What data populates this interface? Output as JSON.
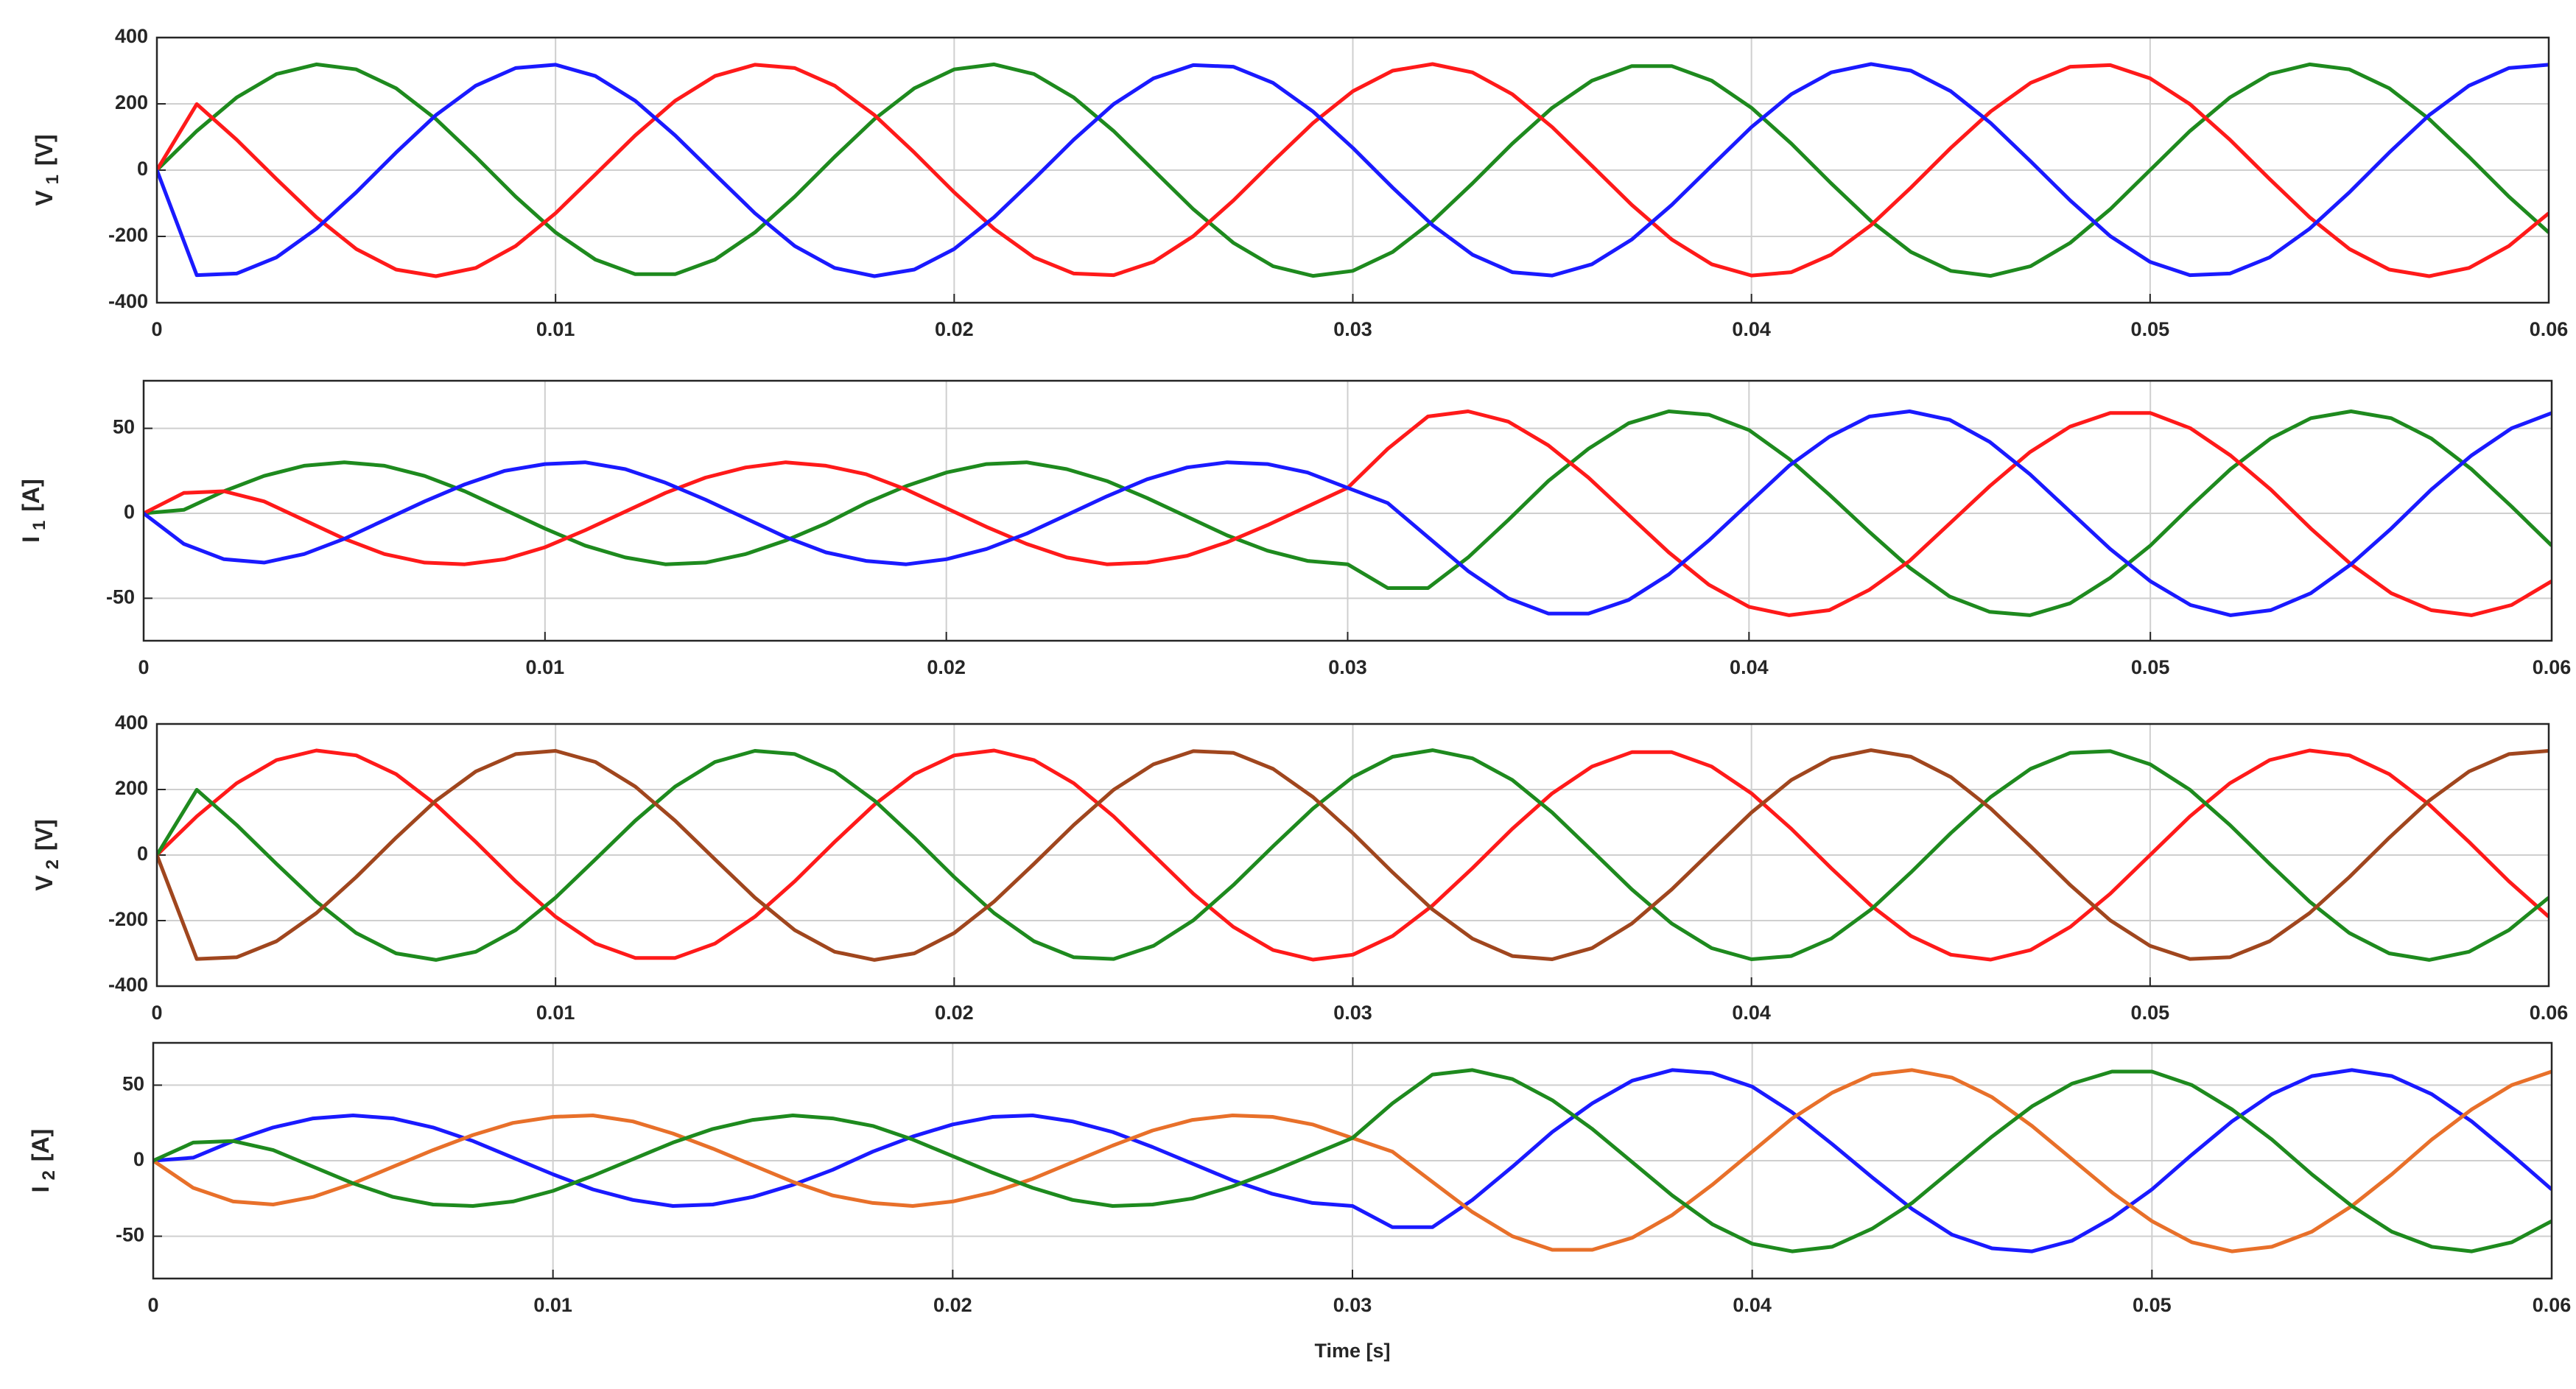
{
  "chart_data": [
    {
      "type": "line",
      "ylabel_symbol": "V",
      "ylabel_subscript": "1",
      "ylabel_unit": "[V]",
      "x": [
        0,
        0.001,
        0.002,
        0.003,
        0.004,
        0.005,
        0.006,
        0.007,
        0.008,
        0.009,
        0.01,
        0.011,
        0.012,
        0.013,
        0.014,
        0.015,
        0.016,
        0.017,
        0.018,
        0.019,
        0.02,
        0.021,
        0.022,
        0.023,
        0.024,
        0.025,
        0.026,
        0.027,
        0.028,
        0.029,
        0.03,
        0.031,
        0.032,
        0.033,
        0.034,
        0.035,
        0.036,
        0.037,
        0.038,
        0.039,
        0.04,
        0.041,
        0.042,
        0.043,
        0.044,
        0.045,
        0.046,
        0.047,
        0.048,
        0.049,
        0.05,
        0.051,
        0.052,
        0.053,
        0.054,
        0.055,
        0.056,
        0.057,
        0.058,
        0.059,
        0.06
      ],
      "xlim": [
        0,
        0.06
      ],
      "xticks": [
        0,
        0.01,
        0.02,
        0.03,
        0.04,
        0.05,
        0.06
      ],
      "ylim": [
        -400,
        400
      ],
      "yticks": [
        -400,
        -200,
        0,
        200,
        400
      ],
      "grid": true,
      "series": [
        {
          "color": "#1e8a1e",
          "values": [
            0,
            118,
            219,
            290,
            319,
            304,
            247,
            154,
            40,
            -80,
            -188,
            -270,
            -314,
            -314,
            -270,
            -188,
            -80,
            40,
            154,
            247,
            304,
            319,
            290,
            219,
            118,
            0,
            -118,
            -219,
            -290,
            -319,
            -304,
            -247,
            -154,
            -40,
            80,
            188,
            270,
            314,
            314,
            270,
            188,
            80,
            -40,
            -154,
            -247,
            -304,
            -319,
            -290,
            -219,
            -118,
            0,
            118,
            219,
            290,
            319,
            304,
            247,
            154,
            40,
            -80,
            -188
          ]
        },
        {
          "color": "#ff1a1a",
          "values": [
            0,
            199,
            92,
            -27,
            -142,
            -238,
            -300,
            -320,
            -295,
            -229,
            -130,
            -13,
            105,
            209,
            284,
            318,
            308,
            255,
            166,
            53,
            -67,
            -177,
            -263,
            -312,
            -317,
            -277,
            -199,
            -92,
            27,
            142,
            238,
            300,
            320,
            295,
            229,
            130,
            13,
            -105,
            -209,
            -284,
            -318,
            -308,
            -255,
            -166,
            -53,
            67,
            177,
            263,
            312,
            317,
            277,
            199,
            92,
            -27,
            -142,
            -238,
            -300,
            -320,
            -295,
            -229,
            -130
          ]
        },
        {
          "color": "#1a1aff",
          "values": [
            0,
            -317,
            -312,
            -263,
            -177,
            -67,
            53,
            166,
            255,
            308,
            318,
            284,
            209,
            105,
            -13,
            -130,
            -229,
            -295,
            -320,
            -300,
            -238,
            -142,
            -27,
            92,
            199,
            277,
            317,
            312,
            263,
            177,
            67,
            -53,
            -166,
            -255,
            -308,
            -318,
            -284,
            -209,
            -105,
            13,
            130,
            229,
            295,
            320,
            300,
            238,
            142,
            27,
            -92,
            -199,
            -277,
            -317,
            -312,
            -263,
            -177,
            -67,
            53,
            166,
            255,
            308,
            318
          ]
        }
      ]
    },
    {
      "type": "line",
      "ylabel_symbol": "I",
      "ylabel_subscript": "1",
      "ylabel_unit": "[A]",
      "x": [
        0,
        0.001,
        0.002,
        0.003,
        0.004,
        0.005,
        0.006,
        0.007,
        0.008,
        0.009,
        0.01,
        0.011,
        0.012,
        0.013,
        0.014,
        0.015,
        0.016,
        0.017,
        0.018,
        0.019,
        0.02,
        0.021,
        0.022,
        0.023,
        0.024,
        0.025,
        0.026,
        0.027,
        0.028,
        0.029,
        0.03,
        0.031,
        0.032,
        0.033,
        0.034,
        0.035,
        0.036,
        0.037,
        0.038,
        0.039,
        0.04,
        0.041,
        0.042,
        0.043,
        0.044,
        0.045,
        0.046,
        0.047,
        0.048,
        0.049,
        0.05,
        0.051,
        0.052,
        0.053,
        0.054,
        0.055,
        0.056,
        0.057,
        0.058,
        0.059,
        0.06
      ],
      "xlim": [
        0,
        0.06
      ],
      "xticks": [
        0,
        0.01,
        0.02,
        0.03,
        0.04,
        0.05,
        0.06
      ],
      "ylim": [
        -75,
        78
      ],
      "yticks": [
        -50,
        0,
        50
      ],
      "grid": true,
      "series": [
        {
          "color": "#1e8a1e",
          "values": [
            0,
            2,
            13,
            22,
            28,
            30,
            28,
            22,
            13,
            2,
            -9,
            -19,
            -26,
            -30,
            -29,
            -24,
            -16,
            -6,
            6,
            16,
            24,
            29,
            30,
            26,
            19,
            9,
            -2,
            -13,
            -22,
            -28,
            -30,
            -44,
            -44,
            -26,
            -4,
            19,
            38,
            53,
            60,
            58,
            49,
            32,
            11,
            -11,
            -32,
            -49,
            -58,
            -60,
            -53,
            -38,
            -19,
            4,
            26,
            44,
            56,
            60,
            56,
            44,
            26,
            4,
            -19
          ]
        },
        {
          "color": "#ff1a1a",
          "values": [
            0,
            12,
            13,
            7,
            -4,
            -15,
            -24,
            -29,
            -30,
            -27,
            -20,
            -10,
            1,
            12,
            21,
            27,
            30,
            28,
            23,
            14,
            3,
            -8,
            -18,
            -26,
            -30,
            -29,
            -25,
            -17,
            -7,
            4,
            15,
            38,
            57,
            60,
            54,
            40,
            21,
            -1,
            -23,
            -42,
            -55,
            -60,
            -57,
            -45,
            -28,
            -6,
            16,
            36,
            51,
            59,
            59,
            50,
            34,
            14,
            -9,
            -30,
            -47,
            -57,
            -60,
            -54,
            -40
          ]
        },
        {
          "color": "#1a1aff",
          "values": [
            0,
            -18,
            -27,
            -29,
            -24,
            -15,
            -4,
            7,
            17,
            25,
            29,
            30,
            26,
            18,
            8,
            -3,
            -14,
            -23,
            -28,
            -30,
            -27,
            -21,
            -12,
            -1,
            10,
            20,
            27,
            30,
            29,
            24,
            15,
            6,
            -14,
            -34,
            -50,
            -59,
            -59,
            -51,
            -36,
            -16,
            6,
            28,
            45,
            57,
            60,
            55,
            42,
            23,
            1,
            -21,
            -40,
            -54,
            -60,
            -57,
            -47,
            -30,
            -9,
            14,
            34,
            50,
            59
          ]
        }
      ]
    },
    {
      "type": "line",
      "ylabel_symbol": "V",
      "ylabel_subscript": "2",
      "ylabel_unit": "[V]",
      "x": [
        0,
        0.001,
        0.002,
        0.003,
        0.004,
        0.005,
        0.006,
        0.007,
        0.008,
        0.009,
        0.01,
        0.011,
        0.012,
        0.013,
        0.014,
        0.015,
        0.016,
        0.017,
        0.018,
        0.019,
        0.02,
        0.021,
        0.022,
        0.023,
        0.024,
        0.025,
        0.026,
        0.027,
        0.028,
        0.029,
        0.03,
        0.031,
        0.032,
        0.033,
        0.034,
        0.035,
        0.036,
        0.037,
        0.038,
        0.039,
        0.04,
        0.041,
        0.042,
        0.043,
        0.044,
        0.045,
        0.046,
        0.047,
        0.048,
        0.049,
        0.05,
        0.051,
        0.052,
        0.053,
        0.054,
        0.055,
        0.056,
        0.057,
        0.058,
        0.059,
        0.06
      ],
      "xlim": [
        0,
        0.06
      ],
      "xticks": [
        0,
        0.01,
        0.02,
        0.03,
        0.04,
        0.05,
        0.06
      ],
      "ylim": [
        -400,
        400
      ],
      "yticks": [
        -400,
        -200,
        0,
        200,
        400
      ],
      "grid": true,
      "series": [
        {
          "color": "#ff1a1a",
          "values": [
            0,
            118,
            219,
            290,
            319,
            304,
            247,
            154,
            40,
            -80,
            -188,
            -270,
            -314,
            -314,
            -270,
            -188,
            -80,
            40,
            154,
            247,
            304,
            319,
            290,
            219,
            118,
            0,
            -118,
            -219,
            -290,
            -319,
            -304,
            -247,
            -154,
            -40,
            80,
            188,
            270,
            314,
            314,
            270,
            188,
            80,
            -40,
            -154,
            -247,
            -304,
            -319,
            -290,
            -219,
            -118,
            0,
            118,
            219,
            290,
            319,
            304,
            247,
            154,
            40,
            -80,
            -188
          ]
        },
        {
          "color": "#1e8a1e",
          "values": [
            0,
            199,
            92,
            -27,
            -142,
            -238,
            -300,
            -320,
            -295,
            -229,
            -130,
            -13,
            105,
            209,
            284,
            318,
            308,
            255,
            166,
            53,
            -67,
            -177,
            -263,
            -312,
            -317,
            -277,
            -199,
            -92,
            27,
            142,
            238,
            300,
            320,
            295,
            229,
            130,
            13,
            -105,
            -209,
            -284,
            -318,
            -308,
            -255,
            -166,
            -53,
            67,
            177,
            263,
            312,
            317,
            277,
            199,
            92,
            -27,
            -142,
            -238,
            -300,
            -320,
            -295,
            -229,
            -130
          ]
        },
        {
          "color": "#a0461e",
          "values": [
            0,
            -317,
            -312,
            -263,
            -177,
            -67,
            53,
            166,
            255,
            308,
            318,
            284,
            209,
            105,
            -13,
            -130,
            -229,
            -295,
            -320,
            -300,
            -238,
            -142,
            -27,
            92,
            199,
            277,
            317,
            312,
            263,
            177,
            67,
            -53,
            -166,
            -255,
            -308,
            -318,
            -284,
            -209,
            -105,
            13,
            130,
            229,
            295,
            320,
            300,
            238,
            142,
            27,
            -92,
            -199,
            -277,
            -317,
            -312,
            -263,
            -177,
            -67,
            53,
            166,
            255,
            308,
            318
          ]
        }
      ]
    },
    {
      "type": "line",
      "ylabel_symbol": "I",
      "ylabel_subscript": "2",
      "ylabel_unit": "[A]",
      "xlabel": "Time [s]",
      "x": [
        0,
        0.001,
        0.002,
        0.003,
        0.004,
        0.005,
        0.006,
        0.007,
        0.008,
        0.009,
        0.01,
        0.011,
        0.012,
        0.013,
        0.014,
        0.015,
        0.016,
        0.017,
        0.018,
        0.019,
        0.02,
        0.021,
        0.022,
        0.023,
        0.024,
        0.025,
        0.026,
        0.027,
        0.028,
        0.029,
        0.03,
        0.031,
        0.032,
        0.033,
        0.034,
        0.035,
        0.036,
        0.037,
        0.038,
        0.039,
        0.04,
        0.041,
        0.042,
        0.043,
        0.044,
        0.045,
        0.046,
        0.047,
        0.048,
        0.049,
        0.05,
        0.051,
        0.052,
        0.053,
        0.054,
        0.055,
        0.056,
        0.057,
        0.058,
        0.059,
        0.06
      ],
      "xlim": [
        0,
        0.06
      ],
      "xticks": [
        0,
        0.01,
        0.02,
        0.03,
        0.04,
        0.05,
        0.06
      ],
      "ylim": [
        -78,
        78
      ],
      "yticks": [
        -50,
        0,
        50
      ],
      "grid": true,
      "series": [
        {
          "color": "#1a1aff",
          "values": [
            0,
            2,
            13,
            22,
            28,
            30,
            28,
            22,
            13,
            2,
            -9,
            -19,
            -26,
            -30,
            -29,
            -24,
            -16,
            -6,
            6,
            16,
            24,
            29,
            30,
            26,
            19,
            9,
            -2,
            -13,
            -22,
            -28,
            -30,
            -44,
            -44,
            -26,
            -4,
            19,
            38,
            53,
            60,
            58,
            49,
            32,
            11,
            -11,
            -32,
            -49,
            -58,
            -60,
            -53,
            -38,
            -19,
            4,
            26,
            44,
            56,
            60,
            56,
            44,
            26,
            4,
            -19
          ]
        },
        {
          "color": "#e8702a",
          "values": [
            0,
            -18,
            -27,
            -29,
            -24,
            -15,
            -4,
            7,
            17,
            25,
            29,
            30,
            26,
            18,
            8,
            -3,
            -14,
            -23,
            -28,
            -30,
            -27,
            -21,
            -12,
            -1,
            10,
            20,
            27,
            30,
            29,
            24,
            15,
            6,
            -14,
            -34,
            -50,
            -59,
            -59,
            -51,
            -36,
            -16,
            6,
            28,
            45,
            57,
            60,
            55,
            42,
            23,
            1,
            -21,
            -40,
            -54,
            -60,
            -57,
            -47,
            -30,
            -9,
            14,
            34,
            50,
            59
          ]
        },
        {
          "color": "#1e8a1e",
          "values": [
            0,
            12,
            13,
            7,
            -4,
            -15,
            -24,
            -29,
            -30,
            -27,
            -20,
            -10,
            1,
            12,
            21,
            27,
            30,
            28,
            23,
            14,
            3,
            -8,
            -18,
            -26,
            -30,
            -29,
            -25,
            -17,
            -7,
            4,
            15,
            38,
            57,
            60,
            54,
            40,
            21,
            -1,
            -23,
            -42,
            -55,
            -60,
            -57,
            -45,
            -28,
            -6,
            16,
            36,
            51,
            59,
            59,
            50,
            34,
            14,
            -9,
            -30,
            -47,
            -57,
            -60,
            -54,
            -40
          ]
        }
      ]
    }
  ]
}
